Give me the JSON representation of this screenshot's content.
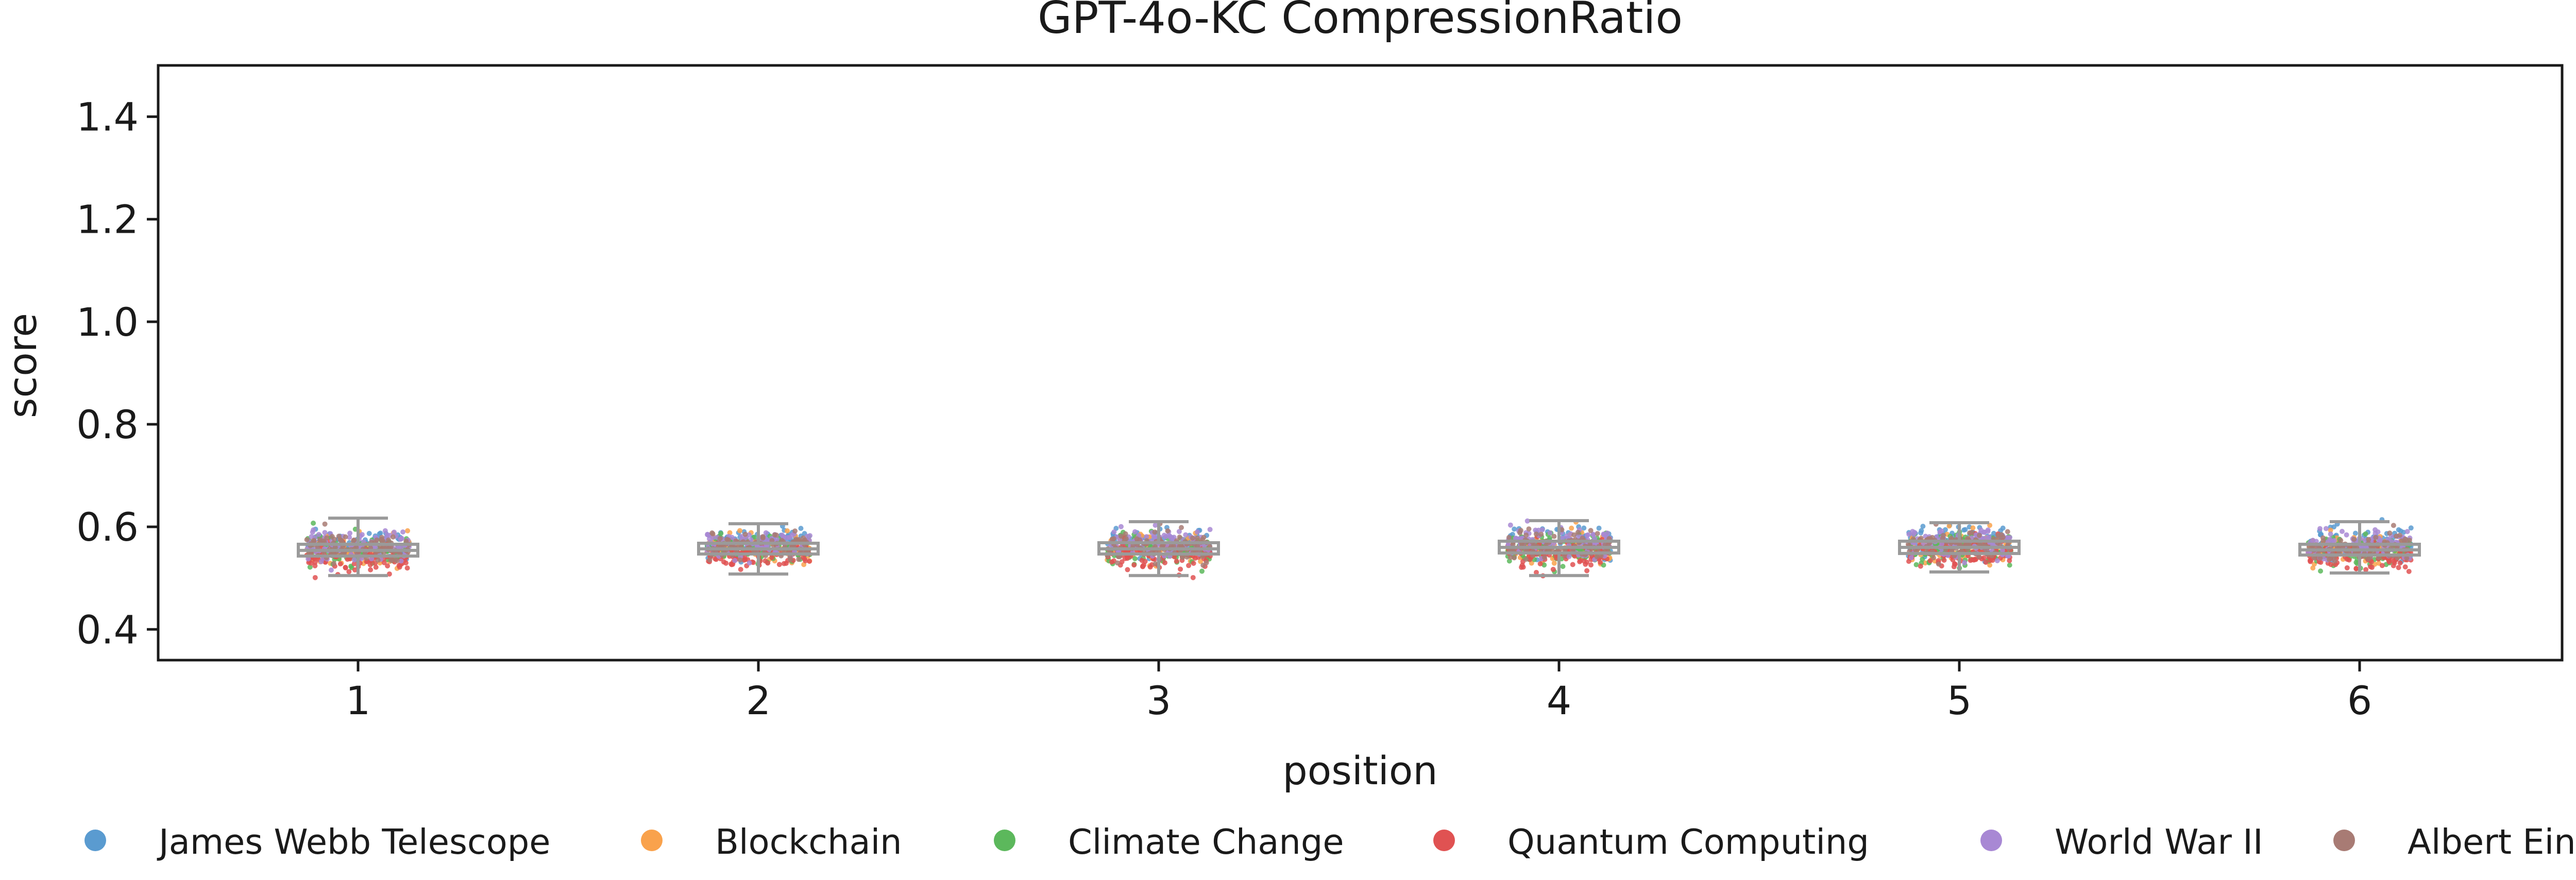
{
  "chart_data": {
    "type": "box_strip",
    "title": "GPT-4o-KC CompressionRatio",
    "xlabel": "position",
    "ylabel": "score",
    "categories": [
      "1",
      "2",
      "3",
      "4",
      "5",
      "6"
    ],
    "ylim": [
      0.34,
      1.5
    ],
    "yticks": [
      "0.4",
      "0.6",
      "0.8",
      "1.0",
      "1.2",
      "1.4"
    ],
    "grid": false,
    "legend_position": "bottom",
    "box_color": "#9a9a9a",
    "boxes": [
      {
        "position": "1",
        "q1": 0.543,
        "median": 0.554,
        "q3": 0.566,
        "whisker_low": 0.505,
        "whisker_high": 0.617
      },
      {
        "position": "2",
        "q1": 0.547,
        "median": 0.557,
        "q3": 0.568,
        "whisker_low": 0.508,
        "whisker_high": 0.606
      },
      {
        "position": "3",
        "q1": 0.547,
        "median": 0.557,
        "q3": 0.569,
        "whisker_low": 0.505,
        "whisker_high": 0.61
      },
      {
        "position": "4",
        "q1": 0.549,
        "median": 0.56,
        "q3": 0.572,
        "whisker_low": 0.505,
        "whisker_high": 0.612
      },
      {
        "position": "5",
        "q1": 0.548,
        "median": 0.56,
        "q3": 0.572,
        "whisker_low": 0.512,
        "whisker_high": 0.608
      },
      {
        "position": "6",
        "q1": 0.545,
        "median": 0.555,
        "q3": 0.566,
        "whisker_low": 0.51,
        "whisker_high": 0.61
      }
    ],
    "series": [
      {
        "name": "James Webb Telescope",
        "color": "#5a9bd0",
        "offset": 0.012
      },
      {
        "name": "Blockchain",
        "color": "#f9a24c",
        "offset": 0.0
      },
      {
        "name": "Climate Change",
        "color": "#5cb85c",
        "offset": -0.002
      },
      {
        "name": "Quantum Computing",
        "color": "#e05252",
        "offset": -0.012
      },
      {
        "name": "World War II",
        "color": "#a888d4",
        "offset": 0.01
      },
      {
        "name": "Albert Einstein",
        "color": "#a87b74",
        "offset": 0.004
      }
    ]
  }
}
